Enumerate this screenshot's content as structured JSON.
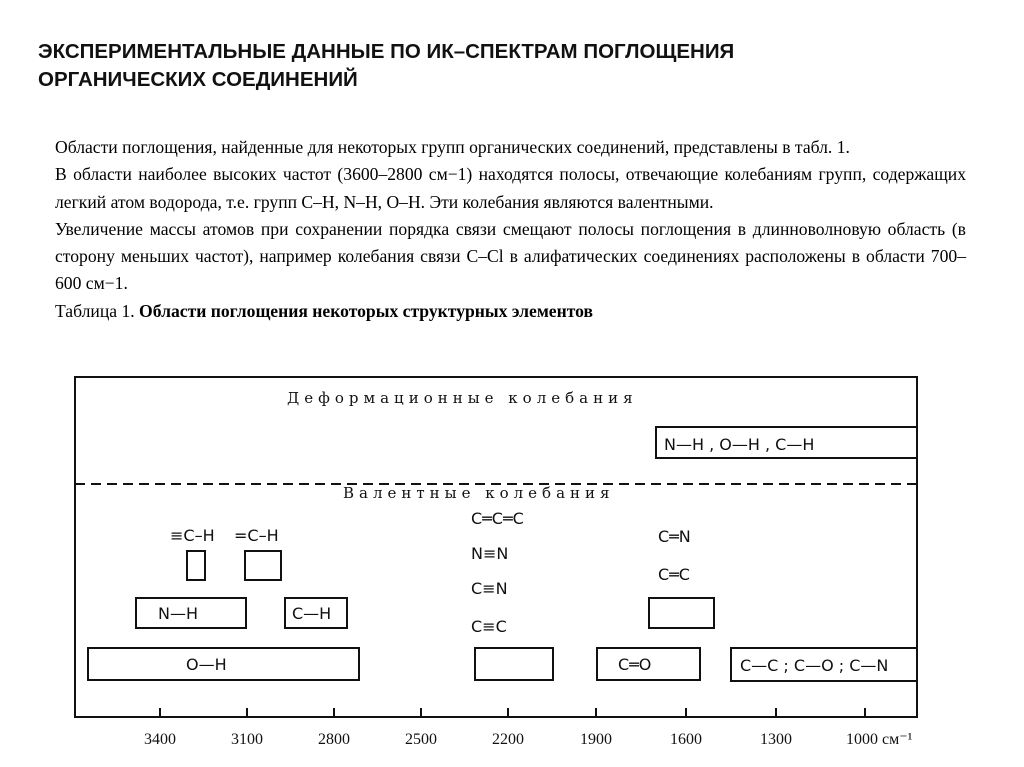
{
  "title": {
    "line1": "ЭКСПЕРИМЕНТАЛЬНЫЕ ДАННЫЕ ПО ИК–СПЕКТРАМ ПОГЛОЩЕНИЯ",
    "line2": "ОРГАНИЧЕСКИХ СОЕДИНЕНИЙ"
  },
  "paragraphs": [
    "Области поглощения, найденные для некоторых групп органических соединений, представлены в табл. 1.",
    "В области наиболее высоких частот (3600–2800 см−1) находятся полосы, отвечающие колебаниям групп, содержащих легкий атом водорода, т.е. групп С–Н, N–Н, О–Н. Эти колебания являются валентными.",
    "Увеличение массы атомов при сохранении порядка связи смещают полосы поглощения в длинноволновую область (в сторону меньших частот), например колебания связи С–Cl в алифатических соединениях расположены в области 700–600 см−1."
  ],
  "caption": {
    "prefix": "Таблица   1. ",
    "title": "Области поглощения некоторых структурных элементов"
  },
  "diagram": {
    "section_deformation": "Деформационные  колебания",
    "section_valence": "Валентные  колебания",
    "labels": {
      "nh_oh_ch": "N—H , O—H , C—H",
      "triple_ch": "≡C–H",
      "double_ch": "=C–H",
      "nh": "N—H",
      "ch": "C—H",
      "oh": "O—H",
      "ccc": "C═C═C",
      "nn": "N≡N",
      "cn": "C≡N",
      "cc3": "C≡C",
      "c_n": "C═N",
      "c_c": "C═C",
      "co": "C═O",
      "single": "C—C ; C—O ; C—N"
    },
    "axis_ticks": [
      "3400",
      "3100",
      "2800",
      "2500",
      "2200",
      "1900",
      "1600",
      "1300",
      "1000"
    ],
    "axis_unit": "см⁻¹"
  }
}
